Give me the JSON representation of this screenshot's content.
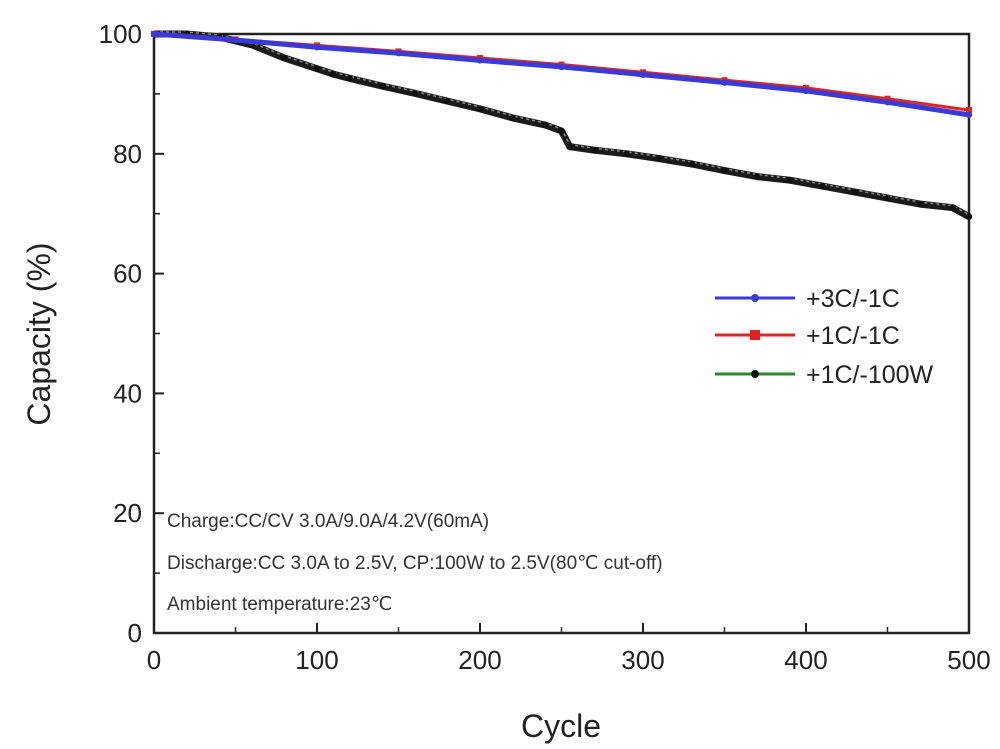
{
  "chart_data": {
    "type": "line",
    "title": "",
    "xlabel": "Cycle",
    "ylabel": "Capacity (%)",
    "xlim": [
      0,
      500
    ],
    "ylim": [
      0,
      100
    ],
    "xticks": [
      "0",
      "100",
      "200",
      "300",
      "400",
      "500"
    ],
    "yticks": [
      "0",
      "20",
      "40",
      "60",
      "80",
      "100"
    ],
    "grid": false,
    "legend_position": "right",
    "series": [
      {
        "name": "+3C/-1C",
        "color": "#3a3ad6",
        "marker": "circle",
        "x": [
          0,
          50,
          100,
          150,
          200,
          250,
          300,
          350,
          400,
          450,
          500
        ],
        "y": [
          100,
          99.0,
          97.8,
          96.8,
          95.6,
          94.5,
          93.2,
          91.9,
          90.5,
          88.6,
          86.5
        ]
      },
      {
        "name": "+1C/-1C",
        "color": "#e02424",
        "marker": "square",
        "x": [
          0,
          50,
          100,
          150,
          200,
          250,
          300,
          350,
          400,
          450,
          500
        ],
        "y": [
          100,
          99.1,
          98.1,
          97.1,
          96.0,
          94.9,
          93.6,
          92.3,
          91.0,
          89.2,
          87.3
        ]
      },
      {
        "name": "+1C/-100W",
        "color": "#2a8a2a",
        "marker_color": "#111111",
        "marker": "circle",
        "x": [
          0,
          20,
          40,
          60,
          80,
          100,
          110,
          120,
          140,
          160,
          180,
          200,
          220,
          240,
          250,
          255,
          270,
          290,
          310,
          330,
          350,
          370,
          390,
          410,
          430,
          450,
          470,
          490,
          500
        ],
        "y": [
          100,
          100,
          99.5,
          98.2,
          96.0,
          94.2,
          93.3,
          92.6,
          91.3,
          90.1,
          88.8,
          87.5,
          86.0,
          84.8,
          83.8,
          81.2,
          80.6,
          80.0,
          79.2,
          78.3,
          77.2,
          76.2,
          75.6,
          74.6,
          73.6,
          72.6,
          71.6,
          71.0,
          69.5
        ]
      }
    ],
    "annotations": [
      "Charge:CC/CV 3.0A/9.0A/4.2V(60mA)",
      "Discharge:CC 3.0A to 2.5V, CP:100W to 2.5V(80℃ cut-off)",
      "Ambient temperature:23℃"
    ]
  }
}
